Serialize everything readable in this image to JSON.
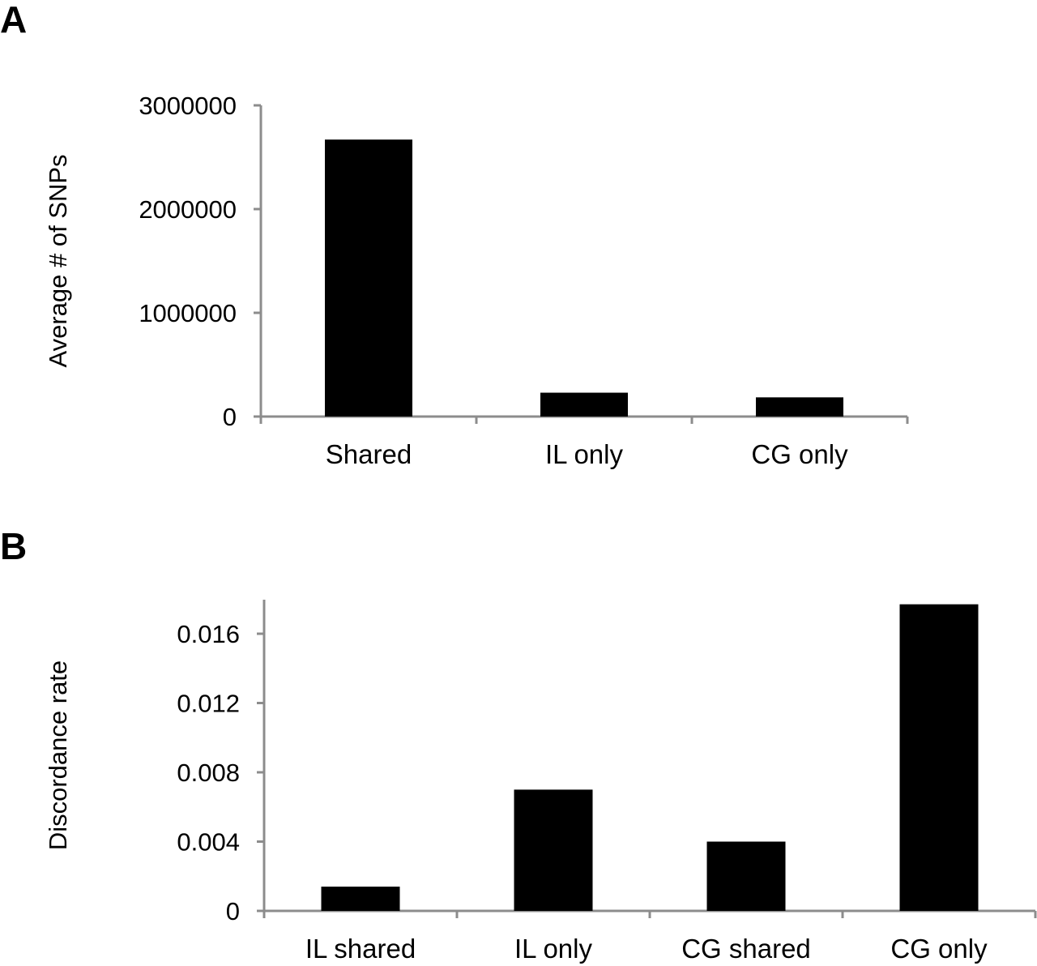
{
  "chart_data": [
    {
      "panel_label": "A",
      "type": "bar",
      "categories": [
        "Shared",
        "IL only",
        "CG only"
      ],
      "values": [
        2670000,
        230000,
        185000
      ],
      "ylabel": "Average # of SNPs",
      "xlabel": "",
      "ylim": [
        0,
        3000000
      ],
      "yticks": [
        0,
        1000000,
        2000000,
        3000000
      ],
      "ytick_labels": [
        "0",
        "1000000",
        "2000000",
        "3000000"
      ],
      "grid": false,
      "bar_color": "#000000"
    },
    {
      "panel_label": "B",
      "type": "bar",
      "categories": [
        "IL shared",
        "IL only",
        "CG shared",
        "CG only"
      ],
      "values": [
        0.0014,
        0.007,
        0.004,
        0.0177
      ],
      "ylabel": "Discordance rate",
      "xlabel": "",
      "ylim": [
        0,
        0.018
      ],
      "yticks": [
        0,
        0.004,
        0.008,
        0.012,
        0.016
      ],
      "ytick_labels": [
        "0",
        "0.004",
        "0.008",
        "0.012",
        "0.016"
      ],
      "grid": false,
      "bar_color": "#000000"
    }
  ]
}
